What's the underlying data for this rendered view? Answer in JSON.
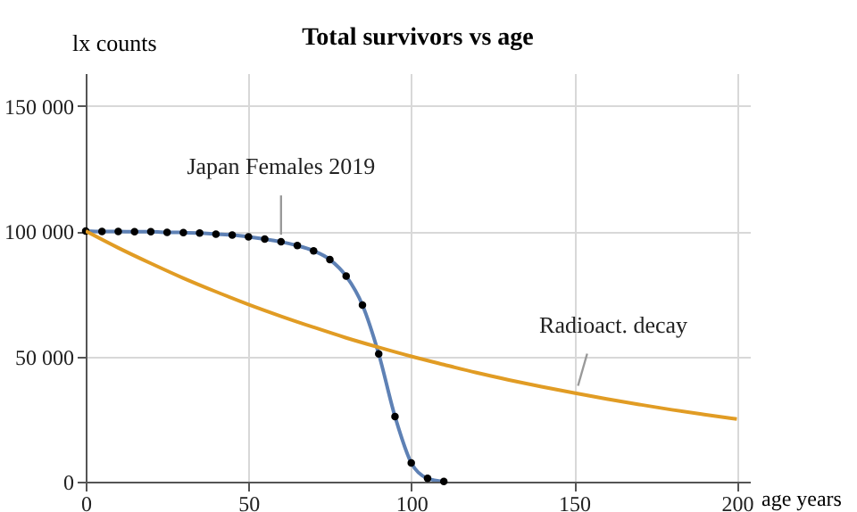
{
  "chart_data": {
    "type": "line",
    "title": "Total survivors vs age",
    "xlabel": "age years",
    "ylabel": "lx counts",
    "x": [
      0,
      5,
      10,
      15,
      20,
      25,
      30,
      35,
      40,
      45,
      50,
      55,
      60,
      65,
      70,
      75,
      80,
      85,
      90,
      95,
      100,
      105,
      110
    ],
    "series": [
      {
        "name": "Japan Females 2019",
        "color": "#5e81b5",
        "marker": "circle",
        "values": [
          100000,
          99800,
          99800,
          99700,
          99700,
          99500,
          99400,
          99200,
          98800,
          98400,
          97700,
          96800,
          95700,
          94200,
          92100,
          88600,
          82000,
          70500,
          51000,
          26000,
          7500,
          1300,
          100
        ]
      },
      {
        "name": "Radioact. decay",
        "color": "#e19c24",
        "marker": "none",
        "x": [
          0,
          10,
          20,
          30,
          40,
          50,
          60,
          70,
          80,
          90,
          100,
          110,
          120,
          130,
          140,
          150,
          160,
          170,
          180,
          190,
          200
        ],
        "values": [
          100000,
          93300,
          87100,
          81200,
          75800,
          70700,
          66000,
          61600,
          57400,
          53600,
          50000,
          46700,
          43500,
          40600,
          37900,
          35400,
          33000,
          30800,
          28700,
          26800,
          25000
        ]
      }
    ],
    "xlim": [
      0,
      204
    ],
    "xticks": [
      0,
      50,
      100,
      150,
      200
    ],
    "ylim": [
      0,
      163000
    ],
    "yticks": [
      0,
      {
        "value": 50000,
        "label": "50 000"
      },
      {
        "value": 100000,
        "label": "100 000"
      },
      {
        "value": 150000,
        "label": "150 000"
      }
    ],
    "grid": true,
    "line_style": "solid"
  }
}
